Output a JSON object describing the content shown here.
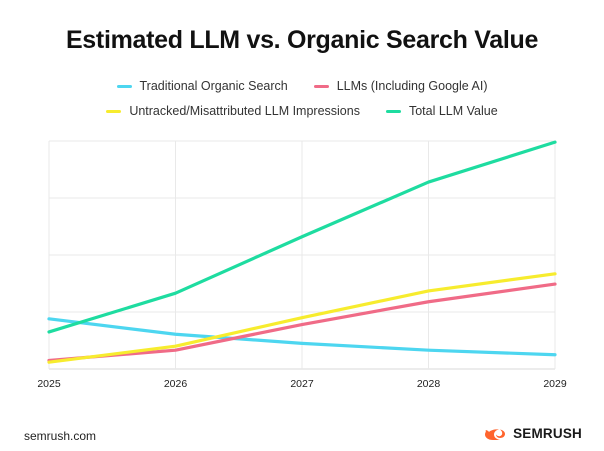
{
  "chart_data": {
    "type": "line",
    "title": "Estimated LLM vs. Organic Search Value",
    "xlabel": "",
    "ylabel": "",
    "categories": [
      "2025",
      "2026",
      "2027",
      "2028",
      "2029"
    ],
    "ylim": [
      0,
      4
    ],
    "y_gridlines": 4,
    "grid": true,
    "legend_position": "top",
    "series": [
      {
        "name": "Traditional Organic Search",
        "color": "#4dd6f0",
        "values": [
          0.88,
          0.61,
          0.45,
          0.33,
          0.25
        ]
      },
      {
        "name": "LLMs (Including Google AI)",
        "color": "#f06b87",
        "values": [
          0.15,
          0.33,
          0.78,
          1.18,
          1.49
        ]
      },
      {
        "name": "Untracked/Misattributed LLM Impressions",
        "color": "#f7ec2e",
        "values": [
          0.12,
          0.4,
          0.9,
          1.37,
          1.67
        ]
      },
      {
        "name": "Total LLM Value",
        "color": "#1edca0",
        "values": [
          0.65,
          1.33,
          2.32,
          3.28,
          3.98
        ]
      }
    ]
  },
  "footer": {
    "source": "semrush.com",
    "brand": "SEMRUSH",
    "brand_color": "#ff642d",
    "logo_icon": "semrush-flame-icon"
  }
}
